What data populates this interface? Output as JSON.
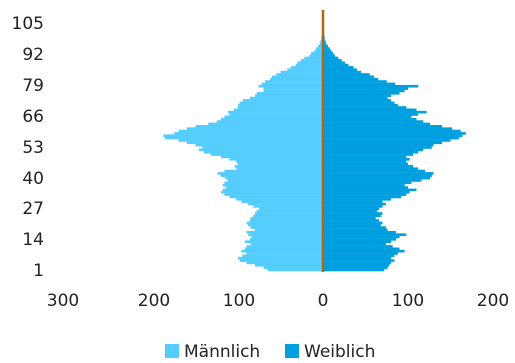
{
  "chart_data": {
    "type": "bar",
    "orientation": "horizontal",
    "diverging": true,
    "ages": [
      1,
      2,
      3,
      4,
      5,
      6,
      7,
      8,
      9,
      10,
      11,
      12,
      13,
      14,
      15,
      16,
      17,
      18,
      19,
      20,
      21,
      22,
      23,
      24,
      25,
      26,
      27,
      28,
      29,
      30,
      31,
      32,
      33,
      34,
      35,
      36,
      37,
      38,
      39,
      40,
      41,
      42,
      43,
      44,
      45,
      46,
      47,
      48,
      49,
      50,
      51,
      52,
      53,
      54,
      55,
      56,
      57,
      58,
      59,
      60,
      61,
      62,
      63,
      64,
      65,
      66,
      67,
      68,
      69,
      70,
      71,
      72,
      73,
      74,
      75,
      76,
      77,
      78,
      79,
      80,
      81,
      82,
      83,
      84,
      85,
      86,
      87,
      88,
      89,
      90,
      91,
      92,
      93,
      94,
      95,
      96,
      97,
      98,
      99,
      100,
      101,
      102,
      103,
      104,
      105
    ],
    "series": [
      {
        "name": "Männlich",
        "color": "#55cdfc",
        "side": "left",
        "values": [
          65,
          70,
          80,
          90,
          98,
          100,
          95,
          90,
          96,
          92,
          90,
          85,
          92,
          86,
          84,
          88,
          90,
          80,
          85,
          88,
          90,
          86,
          85,
          82,
          80,
          78,
          75,
          82,
          88,
          96,
          102,
          110,
          116,
          120,
          118,
          114,
          118,
          116,
          112,
          115,
          120,
          124,
          116,
          102,
          104,
          100,
          102,
          110,
          120,
          132,
          140,
          146,
          142,
          150,
          160,
          170,
          186,
          188,
          175,
          170,
          160,
          150,
          135,
          125,
          120,
          116,
          110,
          112,
          105,
          100,
          100,
          98,
          94,
          86,
          80,
          78,
          70,
          70,
          76,
          72,
          68,
          62,
          60,
          55,
          50,
          42,
          38,
          32,
          30,
          26,
          22,
          16,
          14,
          10,
          8,
          6,
          4,
          3,
          2,
          2,
          1,
          1,
          1,
          0,
          0
        ]
      },
      {
        "name": "Weiblich",
        "color": "#009fdf",
        "side": "right",
        "values": [
          72,
          76,
          78,
          80,
          84,
          80,
          84,
          88,
          96,
          90,
          82,
          74,
          80,
          86,
          90,
          98,
          86,
          76,
          74,
          68,
          70,
          66,
          62,
          68,
          70,
          64,
          66,
          70,
          74,
          70,
          80,
          92,
          98,
          102,
          110,
          100,
          96,
          104,
          116,
          126,
          128,
          130,
          120,
          112,
          106,
          100,
          98,
          102,
          98,
          106,
          112,
          118,
          128,
          130,
          140,
          150,
          160,
          164,
          168,
          162,
          152,
          140,
          126,
          118,
          110,
          104,
          112,
          122,
          110,
          98,
          88,
          84,
          80,
          76,
          80,
          90,
          96,
          100,
          112,
          85,
          75,
          65,
          60,
          55,
          45,
          40,
          36,
          30,
          26,
          22,
          18,
          14,
          12,
          10,
          8,
          6,
          4,
          3,
          2,
          2,
          1,
          1,
          1,
          0,
          0
        ]
      }
    ],
    "y_ticks": [
      "105",
      "92",
      "79",
      "66",
      "53",
      "40",
      "27",
      "14",
      "1"
    ],
    "x_ticks": [
      "300",
      "200",
      "100",
      "0",
      "100",
      "200"
    ],
    "x_range": [
      -300,
      200
    ],
    "center_line_color": "#a66a1e",
    "grid": false,
    "legend_position": "bottom-center"
  }
}
